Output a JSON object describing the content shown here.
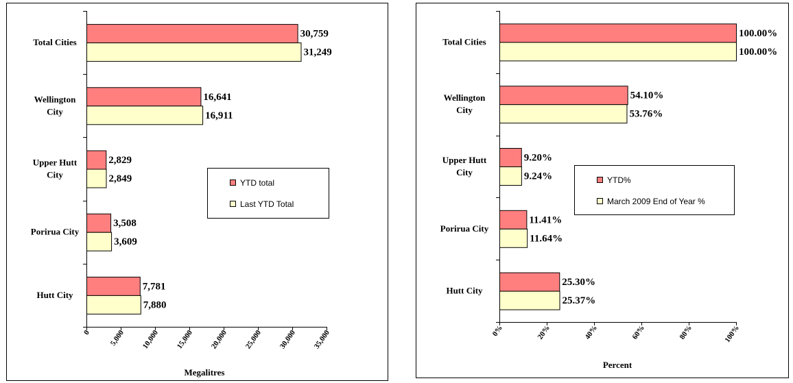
{
  "colors": {
    "series1": "#ff7f7f",
    "series2": "#ffffcc"
  },
  "chart_data": [
    {
      "type": "bar",
      "orientation": "horizontal",
      "categories": [
        "Total Cities",
        "Wellington City",
        "Upper Hutt City",
        "Porirua City",
        "Hutt City"
      ],
      "category_lines": [
        [
          "Total Cities"
        ],
        [
          "Wellington",
          "City"
        ],
        [
          "Upper Hutt",
          "City"
        ],
        [
          "Porirua City"
        ],
        [
          "Hutt City"
        ]
      ],
      "series": [
        {
          "name": "YTD total",
          "values": [
            30759,
            16641,
            2829,
            3508,
            7781
          ],
          "labels": [
            "30,759",
            "16,641",
            "2,829",
            "3,508",
            "7,781"
          ]
        },
        {
          "name": "Last YTD Total",
          "values": [
            31249,
            16911,
            2849,
            3609,
            7880
          ],
          "labels": [
            "31,249",
            "16,911",
            "2,849",
            "3,609",
            "7,880"
          ]
        }
      ],
      "xlabel": "Megalitres",
      "xlim": [
        0,
        35000
      ],
      "xticks": [
        0,
        5000,
        10000,
        15000,
        20000,
        25000,
        30000,
        35000
      ],
      "xtick_labels": [
        "0",
        "5,000",
        "10,000",
        "15,000",
        "20,000",
        "25,000",
        "30,000",
        "35,000"
      ],
      "grid": false,
      "legend_position": "right"
    },
    {
      "type": "bar",
      "orientation": "horizontal",
      "categories": [
        "Total Cities",
        "Wellington City",
        "Upper Hutt City",
        "Porirua City",
        "Hutt City"
      ],
      "category_lines": [
        [
          "Total Cities"
        ],
        [
          "Wellington",
          "City"
        ],
        [
          "Upper Hutt",
          "City"
        ],
        [
          "Porirua City"
        ],
        [
          "Hutt City"
        ]
      ],
      "series": [
        {
          "name": "YTD%",
          "values": [
            100.0,
            54.1,
            9.2,
            11.41,
            25.3
          ],
          "labels": [
            "100.00%",
            "54.10%",
            "9.20%",
            "11.41%",
            "25.30%"
          ]
        },
        {
          "name": "March 2009 End of Year %",
          "values": [
            100.0,
            53.76,
            9.24,
            11.64,
            25.37
          ],
          "labels": [
            "100.00%",
            "53.76%",
            "9.24%",
            "11.64%",
            "25.37%"
          ]
        }
      ],
      "xlabel": "Percent",
      "xlim": [
        0,
        100
      ],
      "xticks": [
        0,
        20,
        40,
        60,
        80,
        100
      ],
      "xtick_labels": [
        "0%",
        "20%",
        "40%",
        "60%",
        "80%",
        "100%"
      ],
      "grid": false,
      "legend_position": "center"
    }
  ]
}
